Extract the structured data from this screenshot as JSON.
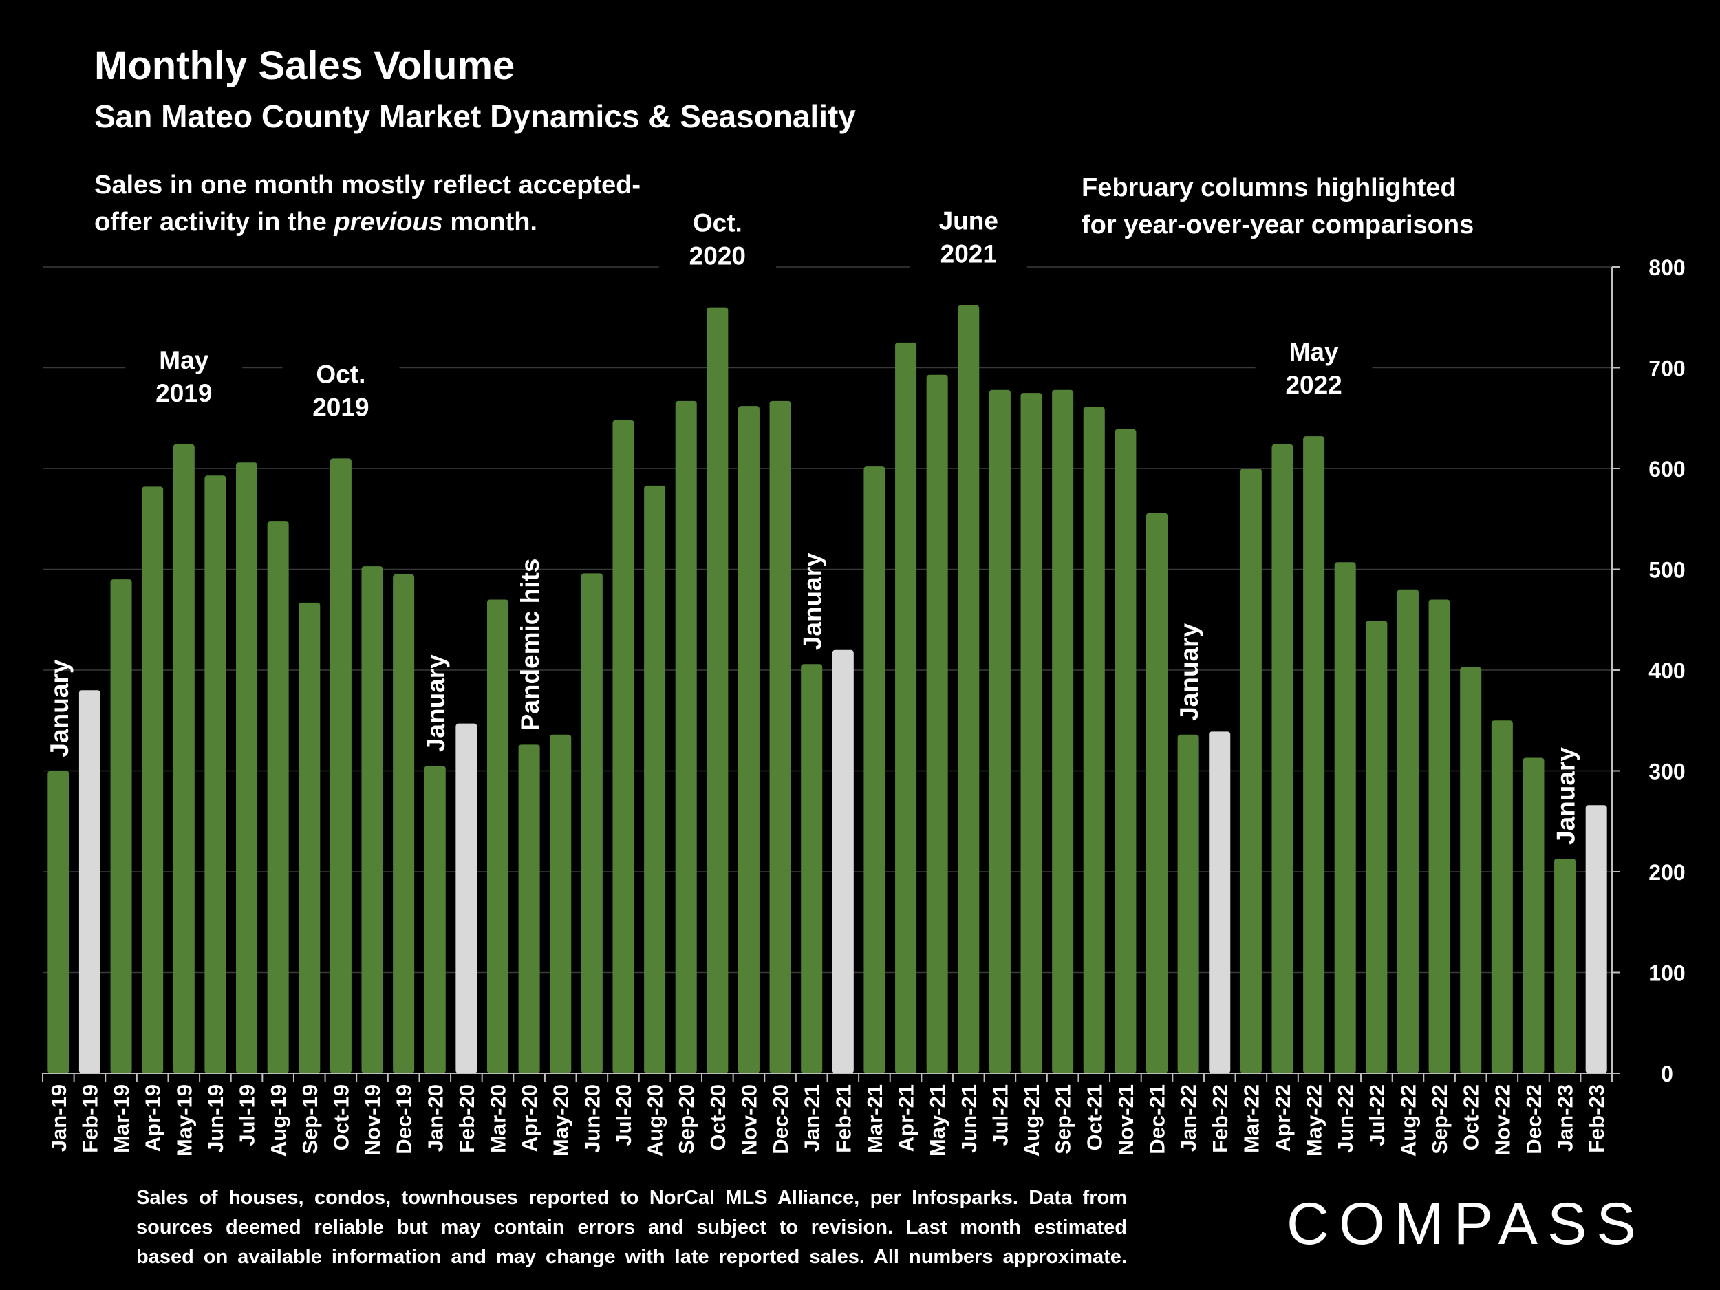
{
  "header": {
    "title": "Monthly Sales Volume",
    "subtitle": "San Mateo County Market Dynamics & Seasonality"
  },
  "notes": {
    "left_line1": "Sales in one month mostly reflect accepted-",
    "left_line2_a": "offer activity in the ",
    "left_line2_em": "previous",
    "left_line2_b": " month.",
    "right_line1": "February columns highlighted",
    "right_line2": "for year-over-year comparisons"
  },
  "footnote": {
    "line1": "Sales of houses, condos, townhouses reported to NorCal MLS Alliance, per Infosparks. Data from",
    "line2": "sources deemed reliable but may contain errors and subject to revision. Last month estimated",
    "line3": "based on available information and may change with late reported sales. All numbers approximate."
  },
  "logo": {
    "text": "COMPASS"
  },
  "colors": {
    "background": "#000000",
    "bar_default": "#538135",
    "bar_highlight": "#d9d9d9",
    "gridline": "#3a3a3a",
    "text": "#ffffff"
  },
  "chart_data": {
    "type": "bar",
    "yaxis_position": "right",
    "ylim": [
      0,
      800
    ],
    "yticks": [
      0,
      100,
      200,
      300,
      400,
      500,
      600,
      700,
      800
    ],
    "grid": true,
    "categories": [
      "Jan-19",
      "Feb-19",
      "Mar-19",
      "Apr-19",
      "May-19",
      "Jun-19",
      "Jul-19",
      "Aug-19",
      "Sep-19",
      "Oct-19",
      "Nov-19",
      "Dec-19",
      "Jan-20",
      "Feb-20",
      "Mar-20",
      "Apr-20",
      "May-20",
      "Jun-20",
      "Jul-20",
      "Aug-20",
      "Sep-20",
      "Oct-20",
      "Nov-20",
      "Dec-20",
      "Jan-21",
      "Feb-21",
      "Mar-21",
      "Apr-21",
      "May-21",
      "Jun-21",
      "Jul-21",
      "Aug-21",
      "Sep-21",
      "Oct-21",
      "Nov-21",
      "Dec-21",
      "Jan-22",
      "Feb-22",
      "Mar-22",
      "Apr-22",
      "May-22",
      "Jun-22",
      "Jul-22",
      "Aug-22",
      "Sep-22",
      "Oct-22",
      "Nov-22",
      "Dec-22",
      "Jan-23",
      "Feb-23"
    ],
    "values": [
      300,
      380,
      490,
      582,
      624,
      593,
      606,
      548,
      467,
      610,
      503,
      495,
      305,
      347,
      470,
      326,
      336,
      496,
      648,
      583,
      667,
      760,
      662,
      667,
      406,
      420,
      602,
      725,
      693,
      762,
      678,
      675,
      678,
      661,
      639,
      556,
      336,
      339,
      600,
      624,
      632,
      507,
      449,
      480,
      470,
      403,
      350,
      313,
      213,
      266
    ],
    "highlighted": [
      "Feb-19",
      "Feb-20",
      "Feb-21",
      "Feb-22",
      "Feb-23"
    ],
    "annotations": [
      {
        "category": "Jan-19",
        "text": "January",
        "orientation": "vertical"
      },
      {
        "category": "Jan-20",
        "text": "January",
        "orientation": "vertical"
      },
      {
        "category": "Apr-20",
        "text": "Pandemic hits",
        "orientation": "vertical"
      },
      {
        "category": "Jan-21",
        "text": "January",
        "orientation": "vertical"
      },
      {
        "category": "Jan-22",
        "text": "January",
        "orientation": "vertical"
      },
      {
        "category": "Jan-23",
        "text": "January",
        "orientation": "vertical"
      },
      {
        "category": "May-19",
        "lines": [
          "May",
          "2019"
        ],
        "orientation": "horizontal"
      },
      {
        "category": "Oct-19",
        "lines": [
          "Oct.",
          "2019"
        ],
        "orientation": "horizontal"
      },
      {
        "category": "Oct-20",
        "lines": [
          "Oct.",
          "2020"
        ],
        "orientation": "horizontal"
      },
      {
        "category": "Jun-21",
        "lines": [
          "June",
          "2021"
        ],
        "orientation": "horizontal"
      },
      {
        "category": "May-22",
        "lines": [
          "May",
          "2022"
        ],
        "orientation": "horizontal"
      }
    ]
  }
}
